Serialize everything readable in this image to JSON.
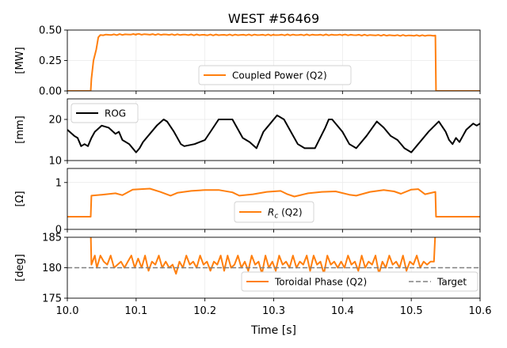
{
  "title": "WEST #56469",
  "xlabel": "Time [s]",
  "x_ticks": [
    "10.0",
    "10.1",
    "10.2",
    "10.3",
    "10.4",
    "10.5",
    "10.6"
  ],
  "colors": {
    "orange": "#ff7f0e",
    "black": "#000000",
    "target": "#808080"
  },
  "chart_data": [
    {
      "type": "line",
      "ylabel": "[MW]",
      "xlim": [
        10.0,
        10.6
      ],
      "ylim": [
        0.0,
        0.5
      ],
      "y_ticks": [
        "0.00",
        "0.25",
        "0.50"
      ],
      "y_tick_values": [
        0.0,
        0.25,
        0.5
      ],
      "grid": true,
      "legend_position": "bottom-center",
      "series": [
        {
          "name": "Coupled Power (Q2)",
          "color": "#ff7f0e",
          "points": [
            [
              10.0,
              0.0
            ],
            [
              10.034,
              0.0
            ],
            [
              10.035,
              0.1
            ],
            [
              10.038,
              0.25
            ],
            [
              10.042,
              0.34
            ],
            [
              10.045,
              0.44
            ],
            [
              10.048,
              0.46
            ],
            [
              10.1,
              0.465
            ],
            [
              10.2,
              0.46
            ],
            [
              10.3,
              0.46
            ],
            [
              10.4,
              0.46
            ],
            [
              10.5,
              0.455
            ],
            [
              10.535,
              0.455
            ],
            [
              10.536,
              0.0
            ],
            [
              10.6,
              0.0
            ]
          ]
        }
      ]
    },
    {
      "type": "line",
      "ylabel": "[mm]",
      "xlim": [
        10.0,
        10.6
      ],
      "ylim": [
        10,
        25
      ],
      "y_ticks": [
        "10",
        "20"
      ],
      "y_tick_values": [
        10,
        20
      ],
      "grid": true,
      "legend_position": "upper-left",
      "series": [
        {
          "name": "ROG",
          "color": "#000000",
          "points": [
            [
              10.0,
              17.5
            ],
            [
              10.01,
              16.0
            ],
            [
              10.015,
              15.5
            ],
            [
              10.02,
              13.5
            ],
            [
              10.025,
              14.0
            ],
            [
              10.03,
              13.5
            ],
            [
              10.035,
              15.5
            ],
            [
              10.04,
              17.0
            ],
            [
              10.05,
              18.5
            ],
            [
              10.06,
              18.0
            ],
            [
              10.07,
              16.5
            ],
            [
              10.075,
              17.0
            ],
            [
              10.08,
              15.0
            ],
            [
              10.09,
              14.0
            ],
            [
              10.1,
              12.0
            ],
            [
              10.105,
              13.0
            ],
            [
              10.11,
              14.5
            ],
            [
              10.12,
              16.5
            ],
            [
              10.13,
              18.5
            ],
            [
              10.14,
              20.0
            ],
            [
              10.145,
              19.5
            ],
            [
              10.155,
              17.0
            ],
            [
              10.165,
              14.0
            ],
            [
              10.17,
              13.5
            ],
            [
              10.185,
              14.0
            ],
            [
              10.2,
              15.0
            ],
            [
              10.21,
              17.5
            ],
            [
              10.22,
              20.0
            ],
            [
              10.24,
              20.0
            ],
            [
              10.255,
              15.5
            ],
            [
              10.265,
              14.5
            ],
            [
              10.275,
              13.0
            ],
            [
              10.285,
              17.0
            ],
            [
              10.295,
              19.0
            ],
            [
              10.305,
              21.0
            ],
            [
              10.315,
              20.0
            ],
            [
              10.325,
              17.0
            ],
            [
              10.335,
              14.0
            ],
            [
              10.345,
              13.0
            ],
            [
              10.36,
              13.0
            ],
            [
              10.375,
              18.0
            ],
            [
              10.38,
              20.0
            ],
            [
              10.385,
              20.0
            ],
            [
              10.4,
              17.0
            ],
            [
              10.41,
              14.0
            ],
            [
              10.42,
              13.0
            ],
            [
              10.435,
              16.0
            ],
            [
              10.45,
              19.5
            ],
            [
              10.46,
              18.0
            ],
            [
              10.47,
              16.0
            ],
            [
              10.48,
              15.0
            ],
            [
              10.49,
              13.0
            ],
            [
              10.5,
              12.0
            ],
            [
              10.51,
              14.0
            ],
            [
              10.525,
              17.0
            ],
            [
              10.54,
              19.5
            ],
            [
              10.55,
              17.0
            ],
            [
              10.555,
              15.0
            ],
            [
              10.56,
              14.0
            ],
            [
              10.565,
              15.5
            ],
            [
              10.57,
              14.5
            ],
            [
              10.575,
              16.0
            ],
            [
              10.58,
              17.5
            ],
            [
              10.59,
              19.0
            ],
            [
              10.595,
              18.5
            ],
            [
              10.6,
              19.0
            ]
          ]
        }
      ]
    },
    {
      "type": "line",
      "ylabel": "[Ω]",
      "xlim": [
        10.0,
        10.6
      ],
      "ylim": [
        0.0,
        1.3
      ],
      "y_ticks": [
        "0",
        "1"
      ],
      "y_tick_values": [
        0,
        1
      ],
      "grid": true,
      "legend_position": "bottom-center",
      "series": [
        {
          "name": "Rc (Q2)",
          "color": "#ff7f0e",
          "points": [
            [
              10.0,
              0.27
            ],
            [
              10.034,
              0.27
            ],
            [
              10.035,
              0.72
            ],
            [
              10.05,
              0.74
            ],
            [
              10.07,
              0.77
            ],
            [
              10.08,
              0.73
            ],
            [
              10.095,
              0.85
            ],
            [
              10.12,
              0.87
            ],
            [
              10.135,
              0.8
            ],
            [
              10.15,
              0.72
            ],
            [
              10.16,
              0.78
            ],
            [
              10.18,
              0.82
            ],
            [
              10.2,
              0.84
            ],
            [
              10.22,
              0.84
            ],
            [
              10.24,
              0.79
            ],
            [
              10.25,
              0.72
            ],
            [
              10.27,
              0.75
            ],
            [
              10.29,
              0.8
            ],
            [
              10.31,
              0.82
            ],
            [
              10.32,
              0.75
            ],
            [
              10.33,
              0.7
            ],
            [
              10.35,
              0.77
            ],
            [
              10.37,
              0.8
            ],
            [
              10.39,
              0.81
            ],
            [
              10.41,
              0.74
            ],
            [
              10.42,
              0.72
            ],
            [
              10.44,
              0.8
            ],
            [
              10.46,
              0.84
            ],
            [
              10.475,
              0.81
            ],
            [
              10.485,
              0.76
            ],
            [
              10.5,
              0.85
            ],
            [
              10.51,
              0.86
            ],
            [
              10.52,
              0.75
            ],
            [
              10.535,
              0.8
            ],
            [
              10.536,
              0.27
            ],
            [
              10.6,
              0.27
            ]
          ]
        }
      ]
    },
    {
      "type": "line",
      "ylabel": "[deg]",
      "xlim": [
        10.0,
        10.6
      ],
      "ylim": [
        175,
        185
      ],
      "y_ticks": [
        "175",
        "180",
        "185"
      ],
      "y_tick_values": [
        175,
        180,
        185
      ],
      "grid": true,
      "legend_position": "bottom-right",
      "series": [
        {
          "name": "Toroidal Phase (Q2)",
          "color": "#ff7f0e",
          "points": [
            [
              10.034,
              186
            ],
            [
              10.035,
              180.5
            ],
            [
              10.04,
              182
            ],
            [
              10.043,
              180
            ],
            [
              10.048,
              182
            ],
            [
              10.053,
              181
            ],
            [
              10.058,
              180.5
            ],
            [
              10.063,
              182
            ],
            [
              10.068,
              180
            ],
            [
              10.073,
              180.5
            ],
            [
              10.078,
              181
            ],
            [
              10.083,
              180
            ],
            [
              10.088,
              181
            ],
            [
              10.093,
              182
            ],
            [
              10.098,
              180
            ],
            [
              10.103,
              181.5
            ],
            [
              10.108,
              180
            ],
            [
              10.113,
              182
            ],
            [
              10.118,
              179.5
            ],
            [
              10.123,
              181
            ],
            [
              10.128,
              180.5
            ],
            [
              10.133,
              182
            ],
            [
              10.138,
              180
            ],
            [
              10.143,
              181
            ],
            [
              10.148,
              180
            ],
            [
              10.153,
              180.5
            ],
            [
              10.158,
              179
            ],
            [
              10.163,
              181
            ],
            [
              10.168,
              180
            ],
            [
              10.173,
              182
            ],
            [
              10.178,
              180.5
            ],
            [
              10.183,
              181
            ],
            [
              10.188,
              180
            ],
            [
              10.193,
              182
            ],
            [
              10.198,
              180.5
            ],
            [
              10.203,
              181
            ],
            [
              10.208,
              179.5
            ],
            [
              10.213,
              181
            ],
            [
              10.218,
              180.5
            ],
            [
              10.223,
              182
            ],
            [
              10.228,
              179.5
            ],
            [
              10.233,
              182
            ],
            [
              10.238,
              180
            ],
            [
              10.243,
              180.5
            ],
            [
              10.248,
              182
            ],
            [
              10.253,
              180
            ],
            [
              10.258,
              181
            ],
            [
              10.263,
              179.5
            ],
            [
              10.268,
              182
            ],
            [
              10.273,
              180.5
            ],
            [
              10.278,
              181
            ],
            [
              10.283,
              179
            ],
            [
              10.288,
              182
            ],
            [
              10.293,
              180
            ],
            [
              10.298,
              181
            ],
            [
              10.303,
              179.5
            ],
            [
              10.308,
              182
            ],
            [
              10.313,
              180.5
            ],
            [
              10.318,
              181
            ],
            [
              10.323,
              180
            ],
            [
              10.328,
              182
            ],
            [
              10.333,
              180
            ],
            [
              10.338,
              181
            ],
            [
              10.343,
              180.5
            ],
            [
              10.348,
              182
            ],
            [
              10.353,
              179.5
            ],
            [
              10.358,
              182
            ],
            [
              10.363,
              180.5
            ],
            [
              10.368,
              181
            ],
            [
              10.373,
              179
            ],
            [
              10.378,
              182
            ],
            [
              10.383,
              180.5
            ],
            [
              10.388,
              181
            ],
            [
              10.393,
              180
            ],
            [
              10.398,
              181
            ],
            [
              10.403,
              180
            ],
            [
              10.408,
              182
            ],
            [
              10.413,
              180.5
            ],
            [
              10.418,
              181
            ],
            [
              10.423,
              179.5
            ],
            [
              10.428,
              182
            ],
            [
              10.433,
              180
            ],
            [
              10.438,
              181
            ],
            [
              10.443,
              180.5
            ],
            [
              10.448,
              182
            ],
            [
              10.453,
              179
            ],
            [
              10.458,
              181
            ],
            [
              10.463,
              180
            ],
            [
              10.468,
              182
            ],
            [
              10.473,
              180.5
            ],
            [
              10.478,
              181
            ],
            [
              10.483,
              180
            ],
            [
              10.488,
              182
            ],
            [
              10.493,
              179.5
            ],
            [
              10.498,
              181
            ],
            [
              10.503,
              180.5
            ],
            [
              10.508,
              182
            ],
            [
              10.513,
              180
            ],
            [
              10.518,
              181
            ],
            [
              10.523,
              180.5
            ],
            [
              10.528,
              181
            ],
            [
              10.533,
              181
            ],
            [
              10.535,
              186
            ]
          ]
        },
        {
          "name": "Target",
          "color": "#808080",
          "dashed": true,
          "points": [
            [
              10.0,
              180
            ],
            [
              10.6,
              180
            ]
          ]
        }
      ]
    }
  ]
}
